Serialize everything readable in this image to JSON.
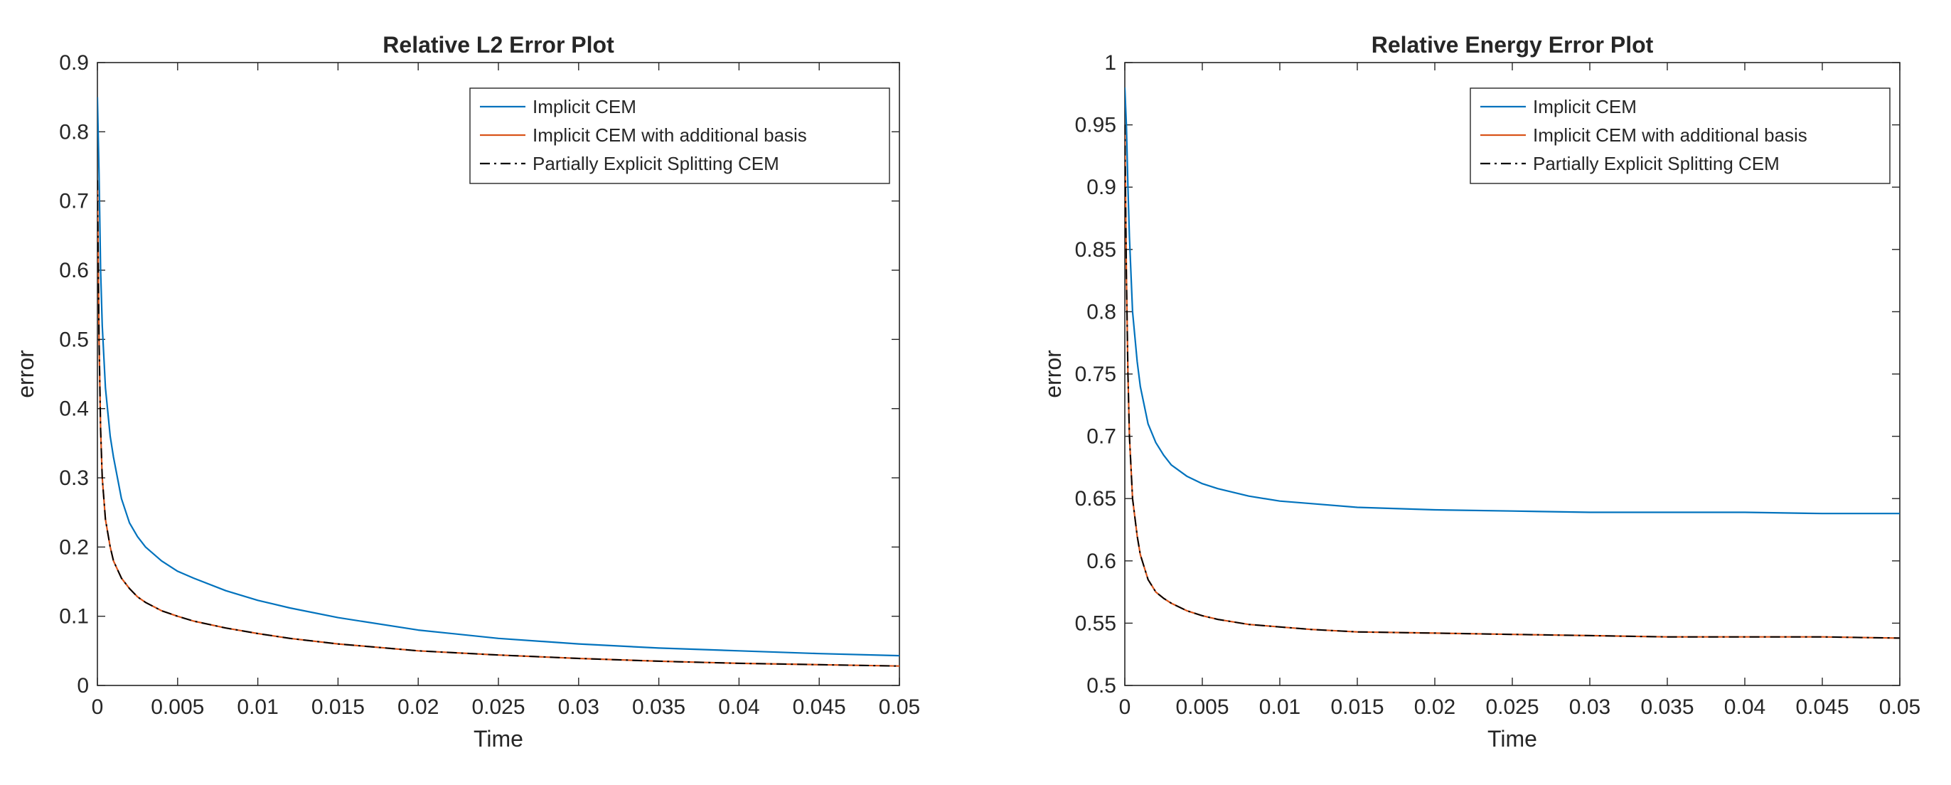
{
  "chart_data": [
    {
      "type": "line",
      "title": "Relative L2 Error Plot",
      "xlabel": "Time",
      "ylabel": "error",
      "xlim": [
        0,
        0.05
      ],
      "ylim": [
        0,
        0.9
      ],
      "xticks": [
        0,
        0.005,
        0.01,
        0.015,
        0.02,
        0.025,
        0.03,
        0.035,
        0.04,
        0.045,
        0.05
      ],
      "xtick_labels": [
        "0",
        "0.005",
        "0.01",
        "0.015",
        "0.02",
        "0.025",
        "0.03",
        "0.035",
        "0.04",
        "0.045",
        "0.05"
      ],
      "yticks": [
        0,
        0.1,
        0.2,
        0.3,
        0.4,
        0.5,
        0.6,
        0.7,
        0.8,
        0.9
      ],
      "ytick_labels": [
        "0",
        "0.1",
        "0.2",
        "0.3",
        "0.4",
        "0.5",
        "0.6",
        "0.7",
        "0.8",
        "0.9"
      ],
      "grid": false,
      "legend": "top-right",
      "series": [
        {
          "name": "Implicit CEM",
          "color": "#0072BD",
          "style": "solid",
          "x": [
            0,
            0.0001,
            0.0002,
            0.0003,
            0.0005,
            0.0008,
            0.001,
            0.0015,
            0.002,
            0.0025,
            0.003,
            0.004,
            0.005,
            0.006,
            0.008,
            0.01,
            0.012,
            0.015,
            0.02,
            0.025,
            0.03,
            0.035,
            0.04,
            0.045,
            0.05
          ],
          "y": [
            0.85,
            0.74,
            0.6,
            0.52,
            0.43,
            0.36,
            0.33,
            0.27,
            0.235,
            0.215,
            0.2,
            0.18,
            0.165,
            0.155,
            0.137,
            0.123,
            0.112,
            0.098,
            0.08,
            0.068,
            0.06,
            0.054,
            0.05,
            0.046,
            0.043
          ]
        },
        {
          "name": "Implicit CEM with additional basis",
          "color": "#D95319",
          "style": "solid",
          "x": [
            0,
            0.0001,
            0.0002,
            0.0003,
            0.0005,
            0.0008,
            0.001,
            0.0015,
            0.002,
            0.0025,
            0.003,
            0.004,
            0.005,
            0.006,
            0.008,
            0.01,
            0.012,
            0.015,
            0.02,
            0.025,
            0.03,
            0.035,
            0.04,
            0.045,
            0.05
          ],
          "y": [
            0.73,
            0.5,
            0.37,
            0.3,
            0.24,
            0.2,
            0.18,
            0.155,
            0.14,
            0.128,
            0.12,
            0.108,
            0.1,
            0.093,
            0.083,
            0.075,
            0.068,
            0.06,
            0.05,
            0.044,
            0.039,
            0.035,
            0.032,
            0.03,
            0.028
          ]
        },
        {
          "name": "Partially Explicit Splitting CEM",
          "color": "#000000",
          "style": "dashdot",
          "x": [
            0,
            0.0001,
            0.0002,
            0.0003,
            0.0005,
            0.0008,
            0.001,
            0.0015,
            0.002,
            0.0025,
            0.003,
            0.004,
            0.005,
            0.006,
            0.008,
            0.01,
            0.012,
            0.015,
            0.02,
            0.025,
            0.03,
            0.035,
            0.04,
            0.045,
            0.05
          ],
          "y": [
            0.73,
            0.5,
            0.37,
            0.3,
            0.24,
            0.2,
            0.18,
            0.155,
            0.14,
            0.128,
            0.12,
            0.108,
            0.1,
            0.093,
            0.083,
            0.075,
            0.068,
            0.06,
            0.05,
            0.044,
            0.039,
            0.035,
            0.032,
            0.03,
            0.028
          ]
        }
      ]
    },
    {
      "type": "line",
      "title": "Relative Energy Error Plot",
      "xlabel": "Time",
      "ylabel": "error",
      "xlim": [
        0,
        0.05
      ],
      "ylim": [
        0.5,
        1
      ],
      "xticks": [
        0,
        0.005,
        0.01,
        0.015,
        0.02,
        0.025,
        0.03,
        0.035,
        0.04,
        0.045,
        0.05
      ],
      "xtick_labels": [
        "0",
        "0.005",
        "0.01",
        "0.015",
        "0.02",
        "0.025",
        "0.03",
        "0.035",
        "0.04",
        "0.045",
        "0.05"
      ],
      "yticks": [
        0.5,
        0.55,
        0.6,
        0.65,
        0.7,
        0.75,
        0.8,
        0.85,
        0.9,
        0.95,
        1
      ],
      "ytick_labels": [
        "0.5",
        "0.55",
        "0.6",
        "0.65",
        "0.7",
        "0.75",
        "0.8",
        "0.85",
        "0.9",
        "0.95",
        "1"
      ],
      "grid": false,
      "legend": "top-right",
      "series": [
        {
          "name": "Implicit CEM",
          "color": "#0072BD",
          "style": "solid",
          "x": [
            0,
            0.0001,
            0.0002,
            0.0003,
            0.0005,
            0.0008,
            0.001,
            0.0015,
            0.002,
            0.0025,
            0.003,
            0.004,
            0.005,
            0.006,
            0.008,
            0.01,
            0.012,
            0.015,
            0.02,
            0.025,
            0.03,
            0.035,
            0.04,
            0.045,
            0.05
          ],
          "y": [
            0.98,
            0.95,
            0.9,
            0.86,
            0.8,
            0.76,
            0.74,
            0.71,
            0.695,
            0.685,
            0.677,
            0.668,
            0.662,
            0.658,
            0.652,
            0.648,
            0.646,
            0.643,
            0.641,
            0.64,
            0.639,
            0.639,
            0.639,
            0.638,
            0.638
          ]
        },
        {
          "name": "Implicit CEM with additional basis",
          "color": "#D95319",
          "style": "solid",
          "x": [
            0,
            0.0001,
            0.0002,
            0.0003,
            0.0005,
            0.0008,
            0.001,
            0.0015,
            0.002,
            0.0025,
            0.003,
            0.004,
            0.005,
            0.006,
            0.008,
            0.01,
            0.012,
            0.015,
            0.02,
            0.025,
            0.03,
            0.035,
            0.04,
            0.045,
            0.05
          ],
          "y": [
            0.95,
            0.83,
            0.75,
            0.7,
            0.65,
            0.62,
            0.605,
            0.585,
            0.575,
            0.57,
            0.566,
            0.56,
            0.556,
            0.553,
            0.549,
            0.547,
            0.545,
            0.543,
            0.542,
            0.541,
            0.54,
            0.539,
            0.539,
            0.539,
            0.538
          ]
        },
        {
          "name": "Partially Explicit Splitting CEM",
          "color": "#000000",
          "style": "dashdot",
          "x": [
            0,
            0.0001,
            0.0002,
            0.0003,
            0.0005,
            0.0008,
            0.001,
            0.0015,
            0.002,
            0.0025,
            0.003,
            0.004,
            0.005,
            0.006,
            0.008,
            0.01,
            0.012,
            0.015,
            0.02,
            0.025,
            0.03,
            0.035,
            0.04,
            0.045,
            0.05
          ],
          "y": [
            0.95,
            0.83,
            0.75,
            0.7,
            0.65,
            0.62,
            0.605,
            0.585,
            0.575,
            0.57,
            0.566,
            0.56,
            0.556,
            0.553,
            0.549,
            0.547,
            0.545,
            0.543,
            0.542,
            0.541,
            0.54,
            0.539,
            0.539,
            0.539,
            0.538
          ]
        }
      ]
    }
  ]
}
